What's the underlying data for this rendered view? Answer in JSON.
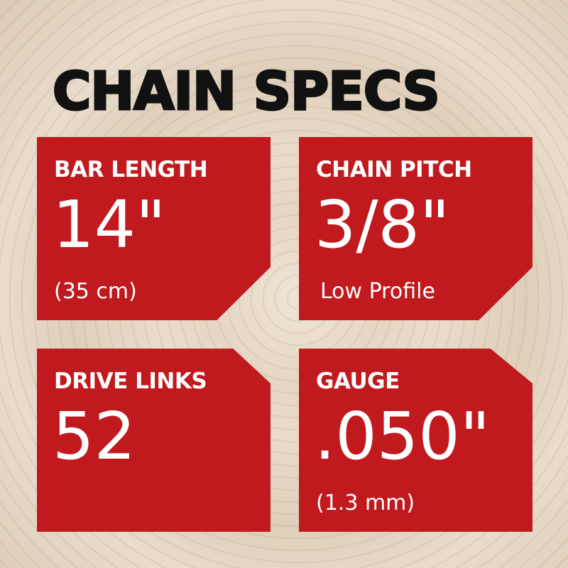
{
  "title": "CHAIN SPECS",
  "colors": {
    "card": "#c0191e",
    "title": "#111111",
    "text": "#ffffff"
  },
  "specs": [
    {
      "label": "BAR LENGTH",
      "value": "14\"",
      "sub": "(35 cm)"
    },
    {
      "label": "CHAIN PITCH",
      "value": "3/8\"",
      "sub": "Low Profile"
    },
    {
      "label": "DRIVE LINKS",
      "value": "52",
      "sub": ""
    },
    {
      "label": "GAUGE",
      "value": ".050\"",
      "sub": "(1.3 mm)"
    }
  ]
}
